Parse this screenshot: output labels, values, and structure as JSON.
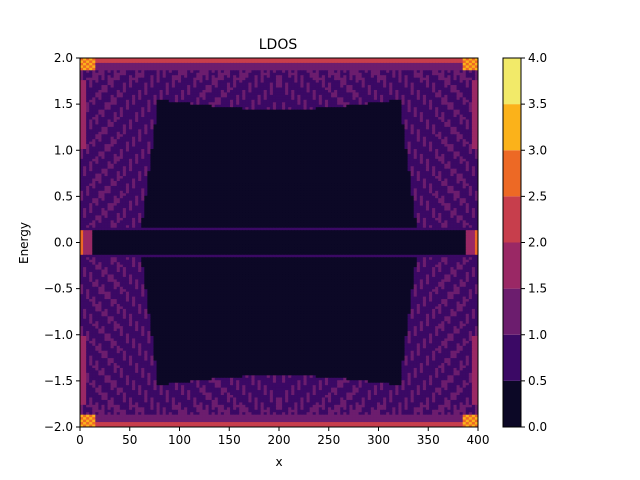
{
  "chart_data": {
    "type": "heatmap",
    "title": "LDOS",
    "xlabel": "x",
    "ylabel": "Energy",
    "xlim": [
      0,
      400
    ],
    "ylim": [
      -2.0,
      2.0
    ],
    "x_ticks": [
      "0",
      "50",
      "100",
      "150",
      "200",
      "250",
      "300",
      "350",
      "400"
    ],
    "y_ticks": [
      "−2.0",
      "−1.5",
      "−1.0",
      "−0.5",
      "0.0",
      "0.5",
      "1.0",
      "1.5",
      "2.0"
    ],
    "colorbar": {
      "levels": [
        0.0,
        0.5,
        1.0,
        1.5,
        2.0,
        2.5,
        3.0,
        3.5,
        4.0
      ],
      "tick_labels": [
        "0.0",
        "0.5",
        "1.0",
        "1.5",
        "2.0",
        "2.5",
        "3.0",
        "3.5",
        "4.0"
      ],
      "colors": [
        "#0c0826",
        "#3b0965",
        "#6c1d6e",
        "#9a2865",
        "#c73e4c",
        "#ed6925",
        "#fbb21a",
        "#f2ea69"
      ]
    },
    "legend": "none",
    "grid": false
  }
}
